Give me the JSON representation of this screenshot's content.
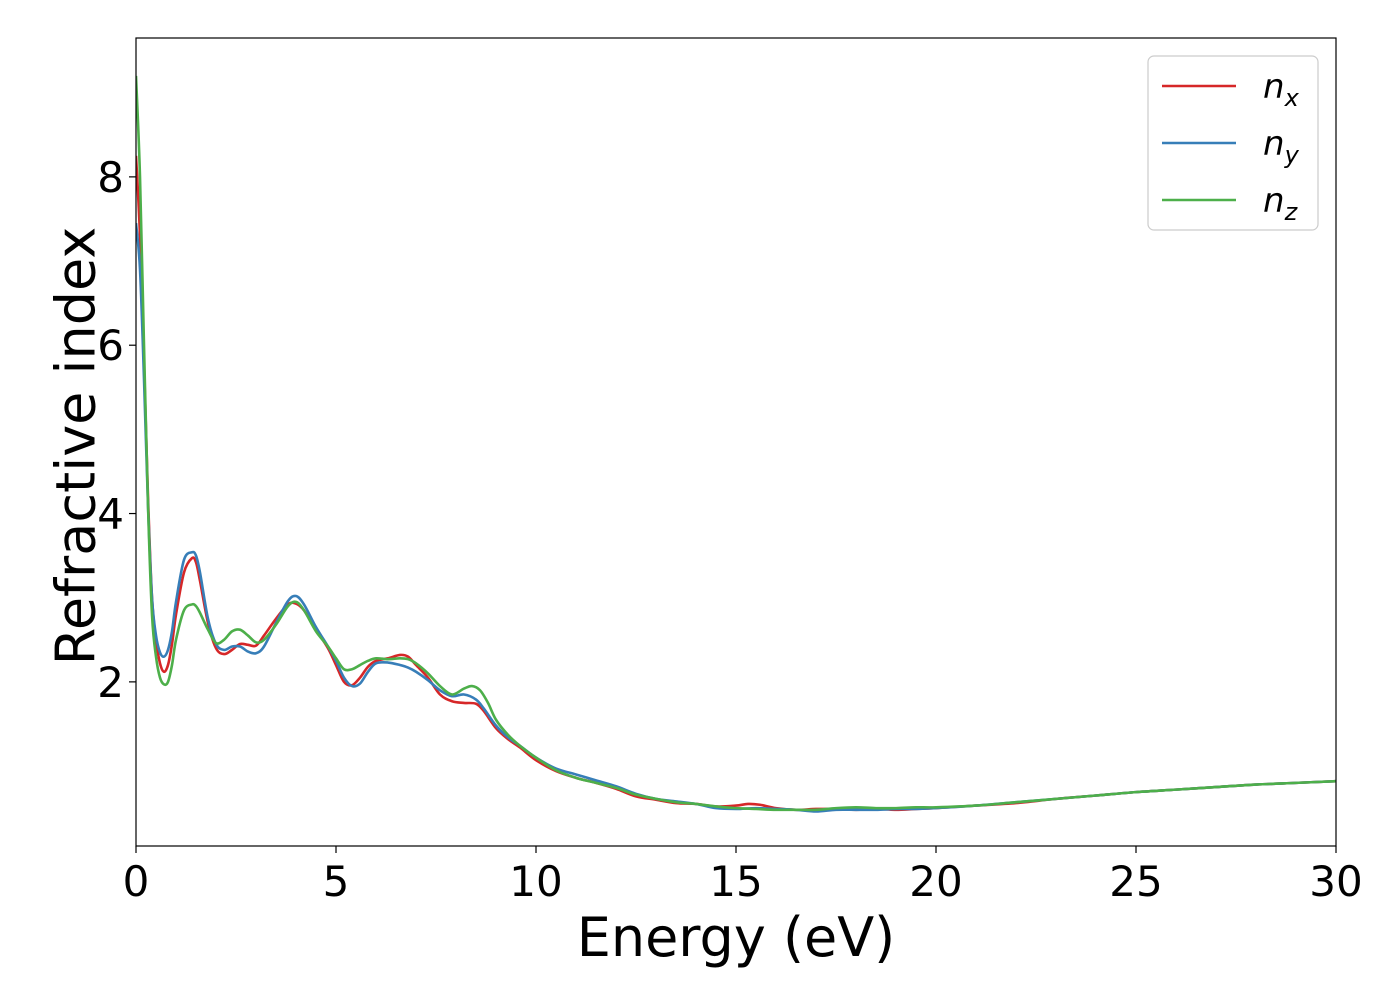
{
  "chart_data": {
    "type": "line",
    "title": "",
    "xlabel": "Energy (eV)",
    "ylabel": "Refractive index",
    "xlim": [
      0,
      30
    ],
    "ylim": [
      0.05,
      9.65
    ],
    "xticks": [
      0,
      5,
      10,
      15,
      20,
      25,
      30
    ],
    "yticks": [
      2,
      4,
      6,
      8
    ],
    "grid": false,
    "legend": {
      "position": "top-right",
      "entries": [
        "n_x",
        "n_y",
        "n_z"
      ]
    },
    "series": [
      {
        "name": "n_x",
        "label_base": "n",
        "label_sub": "x",
        "color": "#d62728",
        "x": [
          0,
          0.1,
          0.2,
          0.3,
          0.4,
          0.5,
          0.6,
          0.7,
          0.8,
          0.9,
          1.0,
          1.2,
          1.4,
          1.5,
          1.6,
          1.8,
          2.0,
          2.2,
          2.4,
          2.6,
          2.8,
          3.0,
          3.2,
          3.5,
          3.8,
          4.0,
          4.2,
          4.5,
          4.8,
          5.0,
          5.2,
          5.4,
          5.6,
          5.8,
          6.0,
          6.3,
          6.6,
          6.8,
          7.0,
          7.3,
          7.6,
          7.9,
          8.2,
          8.5,
          8.7,
          9.0,
          9.3,
          9.6,
          10.0,
          10.5,
          11.0,
          11.5,
          12.0,
          12.5,
          13.0,
          13.5,
          14.0,
          14.5,
          15.0,
          15.3,
          15.6,
          16.0,
          16.5,
          17.0,
          17.5,
          18.0,
          18.5,
          19.0,
          19.5,
          20.0,
          21.0,
          22.0,
          23.0,
          24.0,
          25.0,
          26.0,
          27.0,
          28.0,
          29.0,
          30.0
        ],
        "y": [
          8.25,
          7.3,
          5.8,
          4.2,
          3.0,
          2.5,
          2.22,
          2.12,
          2.2,
          2.45,
          2.8,
          3.3,
          3.47,
          3.42,
          3.2,
          2.7,
          2.4,
          2.33,
          2.38,
          2.45,
          2.44,
          2.43,
          2.55,
          2.75,
          2.92,
          2.93,
          2.85,
          2.62,
          2.4,
          2.2,
          2.0,
          1.96,
          2.05,
          2.18,
          2.25,
          2.28,
          2.32,
          2.3,
          2.2,
          2.05,
          1.85,
          1.77,
          1.75,
          1.74,
          1.65,
          1.45,
          1.32,
          1.22,
          1.07,
          0.94,
          0.86,
          0.8,
          0.73,
          0.64,
          0.6,
          0.56,
          0.55,
          0.52,
          0.53,
          0.55,
          0.54,
          0.5,
          0.48,
          0.49,
          0.49,
          0.48,
          0.49,
          0.48,
          0.49,
          0.5,
          0.53,
          0.56,
          0.61,
          0.65,
          0.69,
          0.72,
          0.75,
          0.78,
          0.8,
          0.82
        ]
      },
      {
        "name": "n_y",
        "label_base": "n",
        "label_sub": "y",
        "color": "#377eb8",
        "x": [
          0,
          0.1,
          0.2,
          0.3,
          0.4,
          0.5,
          0.6,
          0.7,
          0.8,
          0.9,
          1.0,
          1.2,
          1.4,
          1.5,
          1.6,
          1.8,
          2.0,
          2.2,
          2.4,
          2.6,
          2.8,
          3.0,
          3.2,
          3.5,
          3.8,
          4.0,
          4.2,
          4.5,
          4.8,
          5.0,
          5.2,
          5.4,
          5.6,
          5.8,
          6.0,
          6.3,
          6.6,
          6.8,
          7.0,
          7.3,
          7.6,
          7.9,
          8.2,
          8.5,
          8.7,
          9.0,
          9.3,
          9.6,
          10.0,
          10.5,
          11.0,
          11.5,
          12.0,
          12.5,
          13.0,
          13.5,
          14.0,
          14.5,
          15.0,
          15.5,
          16.0,
          16.5,
          17.0,
          17.5,
          18.0,
          18.5,
          19.0,
          19.5,
          20.0,
          21.0,
          22.0,
          23.0,
          24.0,
          25.0,
          26.0,
          27.0,
          28.0,
          29.0,
          30.0
        ],
        "y": [
          7.45,
          6.9,
          5.6,
          4.1,
          3.0,
          2.55,
          2.35,
          2.3,
          2.38,
          2.6,
          2.95,
          3.45,
          3.54,
          3.5,
          3.3,
          2.75,
          2.45,
          2.38,
          2.42,
          2.42,
          2.36,
          2.34,
          2.42,
          2.7,
          2.96,
          3.02,
          2.92,
          2.65,
          2.42,
          2.25,
          2.05,
          1.95,
          1.98,
          2.12,
          2.22,
          2.23,
          2.2,
          2.17,
          2.12,
          2.02,
          1.9,
          1.83,
          1.85,
          1.79,
          1.68,
          1.48,
          1.34,
          1.24,
          1.1,
          0.97,
          0.9,
          0.83,
          0.76,
          0.67,
          0.61,
          0.58,
          0.55,
          0.5,
          0.49,
          0.5,
          0.49,
          0.48,
          0.46,
          0.48,
          0.48,
          0.48,
          0.49,
          0.49,
          0.5,
          0.53,
          0.57,
          0.61,
          0.65,
          0.69,
          0.72,
          0.75,
          0.78,
          0.8,
          0.82
        ]
      },
      {
        "name": "n_z",
        "label_base": "n",
        "label_sub": "z",
        "color": "#4daf4a",
        "x": [
          0,
          0.1,
          0.2,
          0.3,
          0.4,
          0.5,
          0.6,
          0.7,
          0.8,
          0.9,
          1.0,
          1.2,
          1.4,
          1.5,
          1.6,
          1.8,
          2.0,
          2.2,
          2.4,
          2.6,
          2.8,
          3.0,
          3.2,
          3.5,
          3.8,
          4.0,
          4.2,
          4.5,
          4.8,
          5.0,
          5.2,
          5.4,
          5.6,
          5.8,
          6.0,
          6.3,
          6.6,
          6.8,
          7.0,
          7.3,
          7.6,
          7.9,
          8.2,
          8.4,
          8.6,
          8.8,
          9.0,
          9.3,
          9.6,
          10.0,
          10.5,
          11.0,
          11.5,
          12.0,
          12.5,
          13.0,
          13.5,
          14.0,
          14.5,
          15.0,
          15.5,
          16.0,
          16.5,
          17.0,
          17.5,
          18.0,
          18.5,
          19.0,
          19.5,
          20.0,
          21.0,
          22.0,
          23.0,
          24.0,
          25.0,
          26.0,
          27.0,
          28.0,
          29.0,
          30.0
        ],
        "y": [
          9.2,
          8.0,
          6.0,
          4.1,
          2.8,
          2.3,
          2.05,
          1.97,
          2.0,
          2.2,
          2.5,
          2.85,
          2.92,
          2.9,
          2.82,
          2.62,
          2.46,
          2.5,
          2.6,
          2.62,
          2.55,
          2.47,
          2.5,
          2.68,
          2.9,
          2.95,
          2.85,
          2.6,
          2.42,
          2.28,
          2.15,
          2.15,
          2.2,
          2.25,
          2.28,
          2.27,
          2.28,
          2.27,
          2.22,
          2.1,
          1.95,
          1.85,
          1.92,
          1.95,
          1.9,
          1.75,
          1.55,
          1.37,
          1.24,
          1.1,
          0.95,
          0.86,
          0.8,
          0.74,
          0.66,
          0.61,
          0.57,
          0.55,
          0.52,
          0.5,
          0.49,
          0.48,
          0.48,
          0.48,
          0.5,
          0.51,
          0.5,
          0.5,
          0.51,
          0.51,
          0.53,
          0.57,
          0.61,
          0.65,
          0.69,
          0.72,
          0.75,
          0.78,
          0.8,
          0.82
        ]
      }
    ]
  }
}
